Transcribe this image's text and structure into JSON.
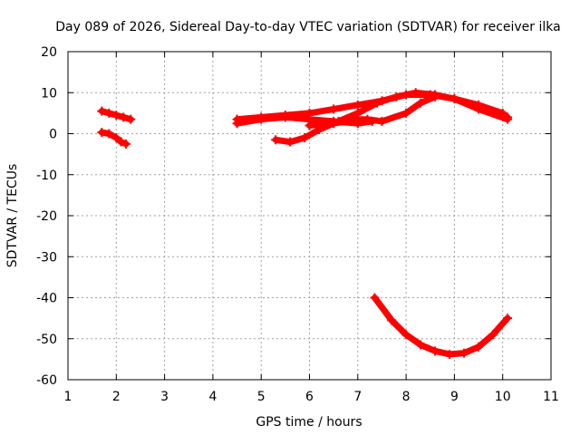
{
  "chart_data": {
    "type": "scatter",
    "title": "Day 089 of 2026, Sidereal Day-to-day VTEC variation (SDTVAR) for receiver ilka",
    "xlabel": "GPS time / hours",
    "ylabel": "SDTVAR / TECUs",
    "xlim": [
      1,
      11
    ],
    "ylim": [
      -60,
      20
    ],
    "xticks": [
      "1",
      "2",
      "3",
      "4",
      "5",
      "6",
      "7",
      "8",
      "9",
      "10",
      "11"
    ],
    "yticks": [
      "20",
      "10",
      "0",
      "-10",
      "-20",
      "-30",
      "-40",
      "-50",
      "-60"
    ],
    "grid": true,
    "legend": "none",
    "marker_color": "#ff0000",
    "series": [
      {
        "x": [
          1.7,
          1.85,
          2.0,
          2.15,
          2.3
        ],
        "y": [
          5.5,
          5.0,
          4.5,
          4.0,
          3.5
        ]
      },
      {
        "x": [
          1.7,
          1.85,
          2.0,
          2.1,
          2.2
        ],
        "y": [
          0.3,
          0.0,
          -1.0,
          -2.0,
          -2.5
        ]
      },
      {
        "x": [
          4.5,
          5.0,
          5.5,
          6.0,
          6.5,
          7.0,
          7.5,
          8.0,
          8.5,
          9.0,
          9.5,
          10.0,
          10.1
        ],
        "y": [
          3.5,
          4.0,
          4.5,
          5.0,
          6.0,
          7.0,
          8.0,
          9.5,
          9.5,
          8.5,
          7.0,
          5.0,
          4.0
        ]
      },
      {
        "x": [
          4.5,
          5.0,
          5.5,
          6.0,
          6.5,
          7.0,
          7.3
        ],
        "y": [
          2.5,
          3.5,
          4.0,
          3.5,
          3.0,
          2.5,
          3.0
        ]
      },
      {
        "x": [
          5.3,
          5.6,
          5.9,
          6.2,
          6.6,
          7.0,
          7.4,
          7.8,
          8.2,
          8.6,
          9.0,
          9.5,
          10.1
        ],
        "y": [
          -1.5,
          -2.0,
          -1.0,
          1.0,
          3.0,
          5.0,
          7.5,
          9.0,
          10.0,
          9.5,
          8.5,
          6.0,
          3.5
        ]
      },
      {
        "x": [
          6.0,
          6.5,
          7.0,
          7.2,
          7.5,
          8.0,
          8.3,
          8.6
        ],
        "y": [
          2.0,
          2.5,
          3.5,
          3.5,
          3.0,
          5.0,
          7.5,
          9.0
        ]
      },
      {
        "x": [
          7.35,
          7.7,
          8.0,
          8.3,
          8.6,
          8.9,
          9.2,
          9.5,
          9.8,
          10.1
        ],
        "y": [
          -40.0,
          -45.5,
          -49.0,
          -51.5,
          -53.0,
          -53.8,
          -53.5,
          -52.0,
          -49.0,
          -45.0
        ]
      }
    ]
  }
}
